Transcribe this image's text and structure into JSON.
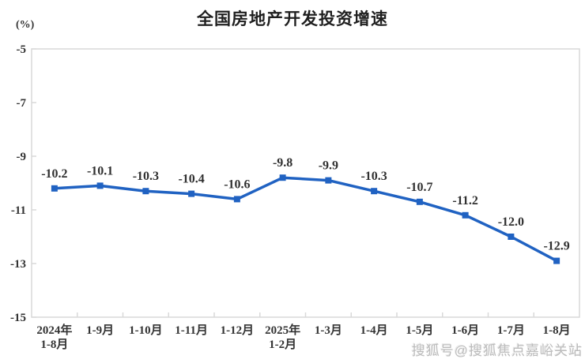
{
  "chart_data": {
    "type": "line",
    "title": "全国房地产开发投资增速",
    "unit": "(%)",
    "categories": [
      "2024年\n1-8月",
      "1-9月",
      "1-10月",
      "1-11月",
      "1-12月",
      "2025年\n1-2月",
      "1-3月",
      "1-4月",
      "1-5月",
      "1-6月",
      "1-7月",
      "1-8月"
    ],
    "values": [
      -10.2,
      -10.1,
      -10.3,
      -10.4,
      -10.6,
      -9.8,
      -9.9,
      -10.3,
      -10.7,
      -11.2,
      -12.0,
      -12.9
    ],
    "point_labels": [
      "-10.2",
      "-10.1",
      "-10.3",
      "-10.4",
      "-10.6",
      "-9.8",
      "-9.9",
      "-10.3",
      "-10.7",
      "-11.2",
      "-12.0",
      "-12.9"
    ],
    "ylim": [
      -15,
      -5
    ],
    "yticks": [
      -5,
      -7,
      -9,
      -11,
      -13,
      -15
    ],
    "grid": false,
    "legend": "none",
    "marker": "square",
    "line_color": "#2062c2",
    "axis_color": "#d9d9d9",
    "text_color": "#333333",
    "watermark": "搜狐号@搜狐焦点嘉峪关站"
  }
}
